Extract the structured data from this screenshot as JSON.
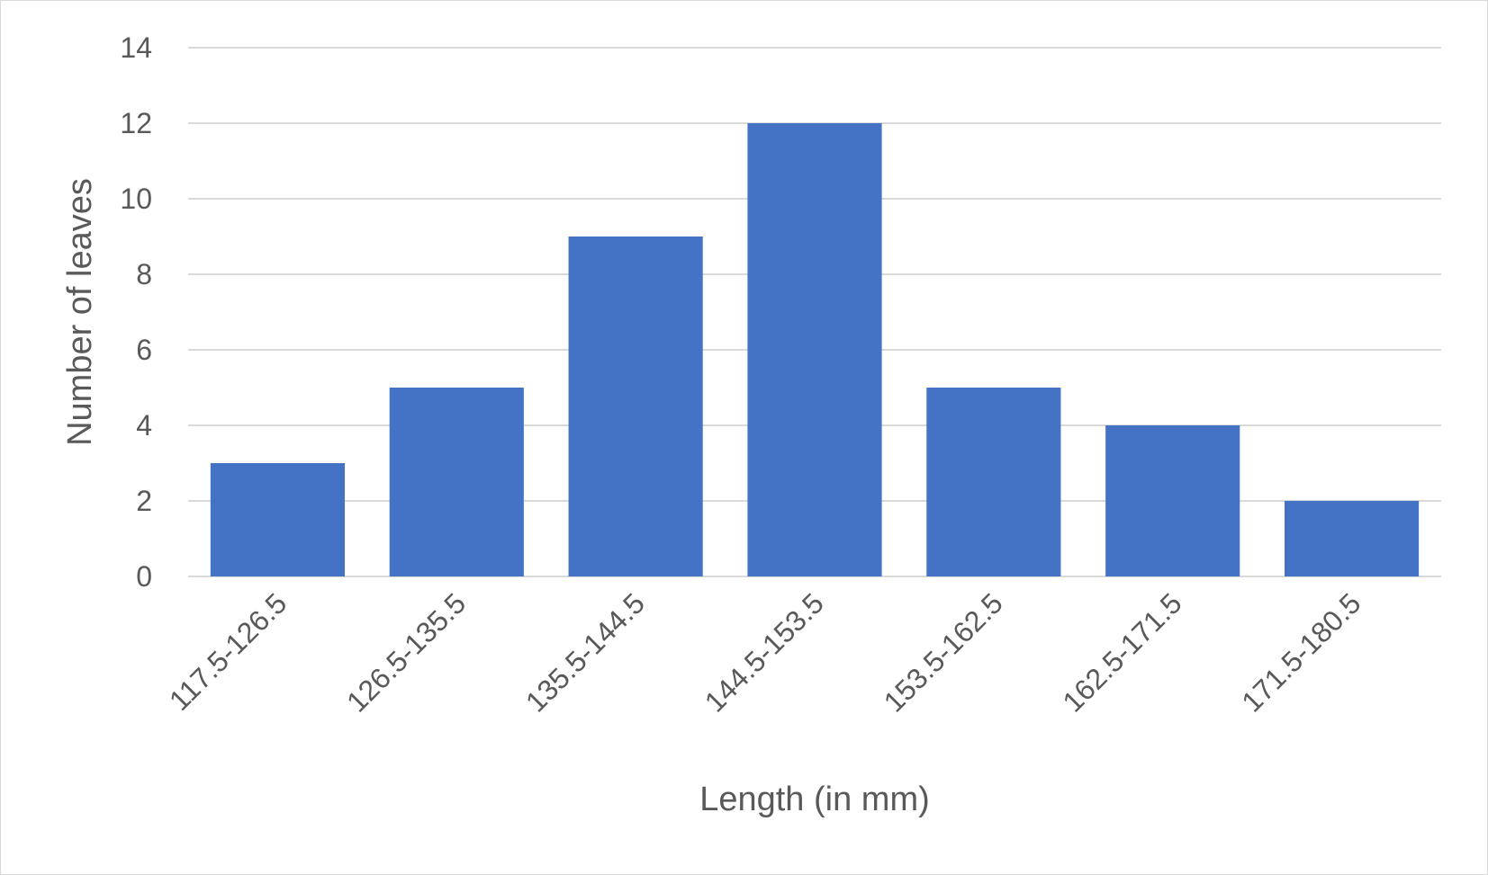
{
  "chart_data": {
    "type": "bar",
    "title": "",
    "xlabel": "Length (in mm)",
    "ylabel": "Number of leaves",
    "categories": [
      "117.5-126.5",
      "126.5-135.5",
      "135.5-144.5",
      "144.5-153.5",
      "153.5-162.5",
      "162.5-171.5",
      "171.5-180.5"
    ],
    "values": [
      3,
      5,
      9,
      12,
      5,
      4,
      2
    ],
    "ylim": [
      0,
      14
    ],
    "yticks": [
      "0",
      "2",
      "4",
      "6",
      "8",
      "10",
      "12",
      "14"
    ],
    "grid": true,
    "legend": "none",
    "colors": {
      "bar": "#4472C4",
      "grid": "#d9d9d9",
      "text": "#595959"
    }
  }
}
